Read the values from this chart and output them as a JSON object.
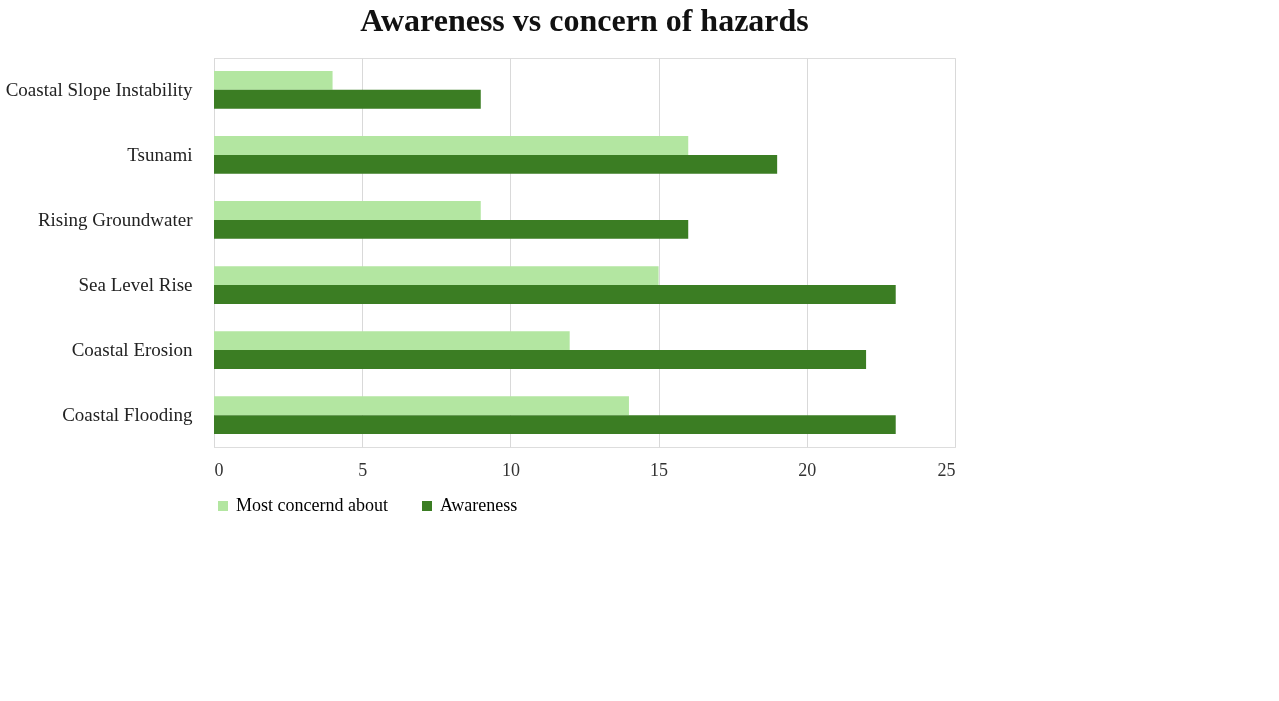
{
  "chart_data": {
    "type": "bar",
    "orientation": "horizontal",
    "title": "Awareness vs concern of hazards",
    "categories": [
      "Coastal Slope Instability",
      "Tsunami",
      "Rising Groundwater",
      "Sea Level Rise",
      "Coastal Erosion",
      "Coastal Flooding"
    ],
    "series": [
      {
        "name": "Most concernd about",
        "color": "#b3e6a1",
        "values": [
          4,
          16,
          9,
          15,
          12,
          14
        ]
      },
      {
        "name": "Awareness",
        "color": "#3b7d23",
        "values": [
          9,
          19,
          16,
          23,
          22,
          23
        ]
      }
    ],
    "xlim": [
      0,
      25
    ],
    "xticks": [
      0,
      5,
      10,
      15,
      20,
      25
    ],
    "grid": "x",
    "legend": "bottom"
  }
}
